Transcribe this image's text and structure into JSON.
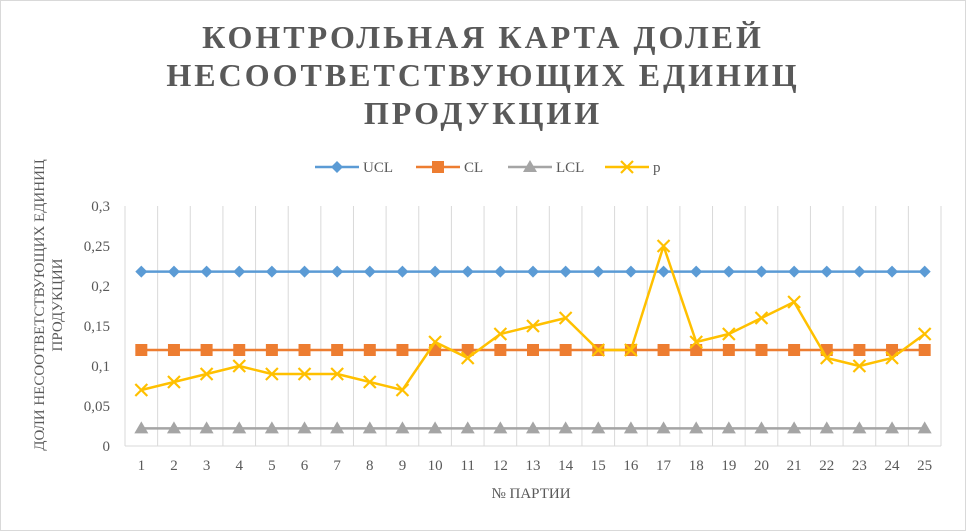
{
  "chart_data": {
    "type": "line",
    "title": "КОНТРОЛЬНАЯ КАРТА ДОЛЕЙ НЕСООТВЕТСТВУЮЩИХ ЕДИНИЦ ПРОДУКЦИИ",
    "xlabel": "№ ПАРТИИ",
    "ylabel": "ДОЛИ НЕСООТВЕТСТВУЮЩИХ ЕДИНИЦ ПРОДУКЦИИ",
    "categories": [
      "1",
      "2",
      "3",
      "4",
      "5",
      "6",
      "7",
      "8",
      "9",
      "10",
      "11",
      "12",
      "13",
      "14",
      "15",
      "16",
      "17",
      "18",
      "19",
      "20",
      "21",
      "22",
      "23",
      "24",
      "25"
    ],
    "ylim": [
      0,
      0.3
    ],
    "yticks": [
      "0",
      "0,05",
      "0,1",
      "0,15",
      "0,2",
      "0,25",
      "0,3"
    ],
    "grid": "vertical",
    "legend_position": "top",
    "series": [
      {
        "name": "UCL",
        "color": "#5b9bd5",
        "marker": "diamond",
        "values": [
          0.218,
          0.218,
          0.218,
          0.218,
          0.218,
          0.218,
          0.218,
          0.218,
          0.218,
          0.218,
          0.218,
          0.218,
          0.218,
          0.218,
          0.218,
          0.218,
          0.218,
          0.218,
          0.218,
          0.218,
          0.218,
          0.218,
          0.218,
          0.218,
          0.218
        ]
      },
      {
        "name": "CL",
        "color": "#ed7d31",
        "marker": "square",
        "values": [
          0.12,
          0.12,
          0.12,
          0.12,
          0.12,
          0.12,
          0.12,
          0.12,
          0.12,
          0.12,
          0.12,
          0.12,
          0.12,
          0.12,
          0.12,
          0.12,
          0.12,
          0.12,
          0.12,
          0.12,
          0.12,
          0.12,
          0.12,
          0.12,
          0.12
        ]
      },
      {
        "name": "LCL",
        "color": "#a5a5a5",
        "marker": "triangle",
        "values": [
          0.022,
          0.022,
          0.022,
          0.022,
          0.022,
          0.022,
          0.022,
          0.022,
          0.022,
          0.022,
          0.022,
          0.022,
          0.022,
          0.022,
          0.022,
          0.022,
          0.022,
          0.022,
          0.022,
          0.022,
          0.022,
          0.022,
          0.022,
          0.022,
          0.022
        ]
      },
      {
        "name": "p",
        "color": "#ffc000",
        "marker": "x",
        "values": [
          0.07,
          0.08,
          0.09,
          0.1,
          0.09,
          0.09,
          0.09,
          0.08,
          0.07,
          0.13,
          0.11,
          0.14,
          0.15,
          0.16,
          0.12,
          0.12,
          0.25,
          0.13,
          0.14,
          0.16,
          0.18,
          0.11,
          0.1,
          0.11,
          0.14
        ]
      }
    ]
  }
}
